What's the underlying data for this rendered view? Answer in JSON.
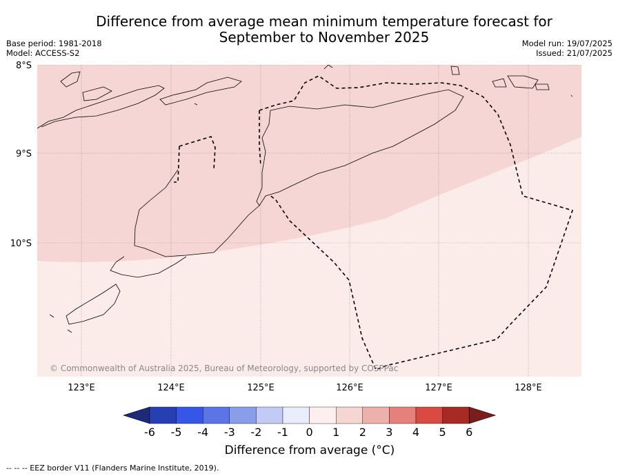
{
  "title_line1": "Difference from average mean minimum temperature forecast for",
  "title_line2": "September to November 2025",
  "meta_left": {
    "base_period": "Base period: 1981-2018",
    "model": "Model: ACCESS-S2"
  },
  "meta_right": {
    "model_run": "Model run: 19/07/2025",
    "issued": "Issued: 21/07/2025"
  },
  "lat_labels": [
    "8°S",
    "9°S",
    "10°S"
  ],
  "lon_labels": [
    "123°E",
    "124°E",
    "125°E",
    "126°E",
    "127°E",
    "128°E"
  ],
  "copyright": "© Commonwealth of Australia 2025, Bureau of Meteorology, supported by COSPPac",
  "colorbar": {
    "ticks": [
      "-6",
      "-5",
      "-4",
      "-3",
      "-2",
      "-1",
      "0",
      "1",
      "2",
      "3",
      "4",
      "5",
      "6"
    ],
    "colors": [
      "#1d2a7a",
      "#263fb3",
      "#3556e6",
      "#5b74e6",
      "#8a9deb",
      "#c2cbf5",
      "#e9ecfb",
      "#fcefed",
      "#f5d6d2",
      "#eeb0aa",
      "#e6807a",
      "#d94a42",
      "#a82a24",
      "#7a1d1c"
    ],
    "title": "Difference from average (°C)"
  },
  "map_fills": {
    "warm_1_2": "#f5d6d4",
    "warm_0_1": "#fbecea"
  },
  "footnote": "-- -- -- EEZ border V11 (Flanders Marine Institute, 2019)."
}
